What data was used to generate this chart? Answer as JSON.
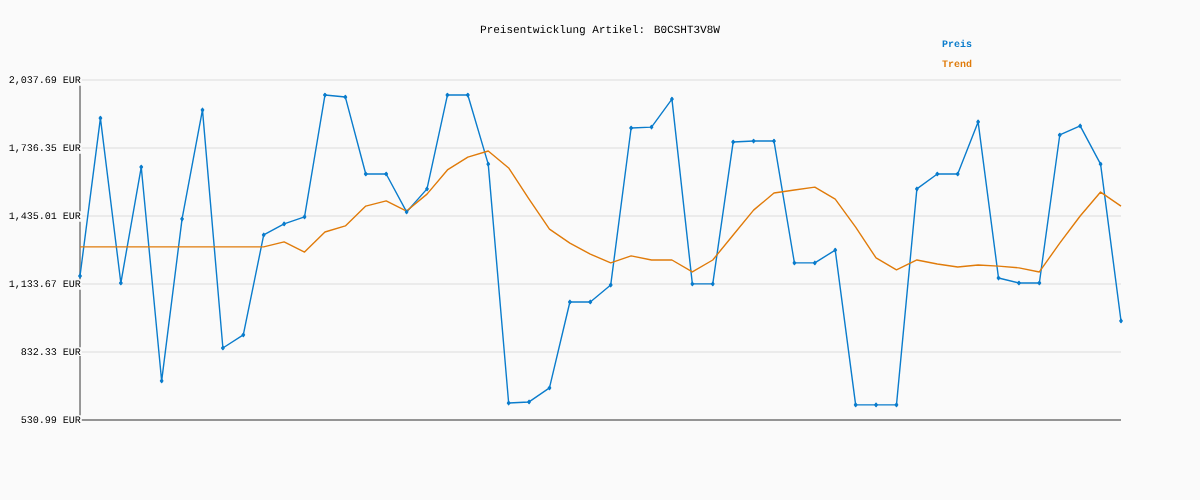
{
  "chart_data": {
    "type": "line",
    "title": "Preisentwicklung Artikel: B0CSHT3V8W",
    "categories": [
      null,
      null,
      null,
      null,
      null,
      null,
      null,
      null,
      null,
      null,
      null,
      null,
      null,
      null,
      null,
      null,
      null,
      null,
      null,
      null,
      null,
      null,
      null,
      null,
      null,
      null,
      null,
      null,
      null,
      null,
      null,
      null,
      null,
      null,
      null,
      null,
      null,
      null,
      null,
      null,
      null,
      null,
      null,
      null,
      null,
      null,
      null,
      null,
      null,
      null,
      null,
      null
    ],
    "series": [
      {
        "name": "Preis",
        "color": "#0a7ccc",
        "marker": "diamond",
        "values": [
          1169,
          1869,
          1138,
          1652,
          704,
          1422,
          1905,
          850,
          908,
          1351,
          1400,
          1431,
          1971,
          1962,
          1621,
          1621,
          1453,
          1555,
          1971,
          1971,
          1665,
          606,
          611,
          673,
          1054,
          1054,
          1129,
          1825,
          1829,
          1953,
          1134,
          1134,
          1763,
          1767,
          1767,
          1227,
          1227,
          1284,
          598,
          598,
          598,
          1555,
          1621,
          1621,
          1852,
          1160,
          1138,
          1138,
          1794,
          1834,
          1665,
          970
        ]
      },
      {
        "name": "Trend",
        "color": "#e07b0a",
        "values": [
          1298,
          1298,
          1298,
          1298,
          1298,
          1298,
          1298,
          1298,
          1298,
          1298,
          1320,
          1275,
          1364,
          1391,
          1479,
          1502,
          1457,
          1532,
          1639,
          1696,
          1723,
          1648,
          1510,
          1377,
          1315,
          1266,
          1227,
          1258,
          1240,
          1240,
          1187,
          1240,
          1351,
          1461,
          1537,
          1550,
          1563,
          1510,
          1386,
          1249,
          1196,
          1240,
          1222,
          1209,
          1218,
          1213,
          1205,
          1187,
          1315,
          1435,
          1541,
          1479
        ]
      }
    ],
    "ylim": [
      530.99,
      2037.69
    ],
    "yticks": [
      {
        "value": 530.99,
        "label": "530.99 EUR"
      },
      {
        "value": 832.33,
        "label": "832.33 EUR"
      },
      {
        "value": 1133.67,
        "label": "1,133.67 EUR"
      },
      {
        "value": 1435.01,
        "label": "1,435.01 EUR"
      },
      {
        "value": 1736.35,
        "label": "1,736.35 EUR"
      },
      {
        "value": 2037.69,
        "label": "2,037.69 EUR"
      }
    ],
    "grid": "y",
    "legend": "top right",
    "tick_labels": "y"
  }
}
